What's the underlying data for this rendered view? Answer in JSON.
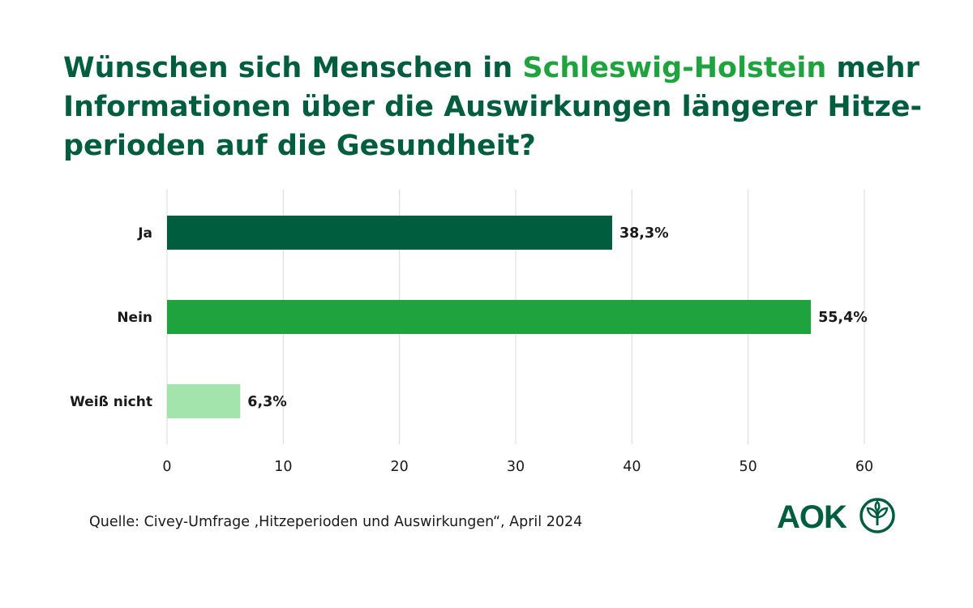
{
  "title": {
    "part1": "Wünschen sich Menschen in ",
    "highlight": "Schleswig-Holstein",
    "part2": " mehr Informationen über die Auswirkungen längerer Hitze-perioden auf die Gesundheit?"
  },
  "source": "Quelle: Civey-Umfrage ‚Hitzeperioden und Auswirkungen“, April 2024",
  "logo": {
    "text": "AOK",
    "icon": "aok-tree-icon",
    "color": "#005e3f"
  },
  "colors": {
    "title": "#005e3f",
    "highlight": "#1fa33f"
  },
  "chart_data": {
    "type": "bar",
    "orientation": "horizontal",
    "categories": [
      "Ja",
      "Nein",
      "Weiß nicht"
    ],
    "values": [
      38.3,
      55.4,
      6.3
    ],
    "value_labels": [
      "38,3%",
      "55,4%",
      "6,3%"
    ],
    "colors": [
      "#005e3f",
      "#1fa33f",
      "#a3e3ac"
    ],
    "xlim": [
      0,
      60
    ],
    "xticks": [
      0,
      10,
      20,
      30,
      40,
      50,
      60
    ],
    "grid": true,
    "xlabel": "",
    "ylabel": ""
  }
}
